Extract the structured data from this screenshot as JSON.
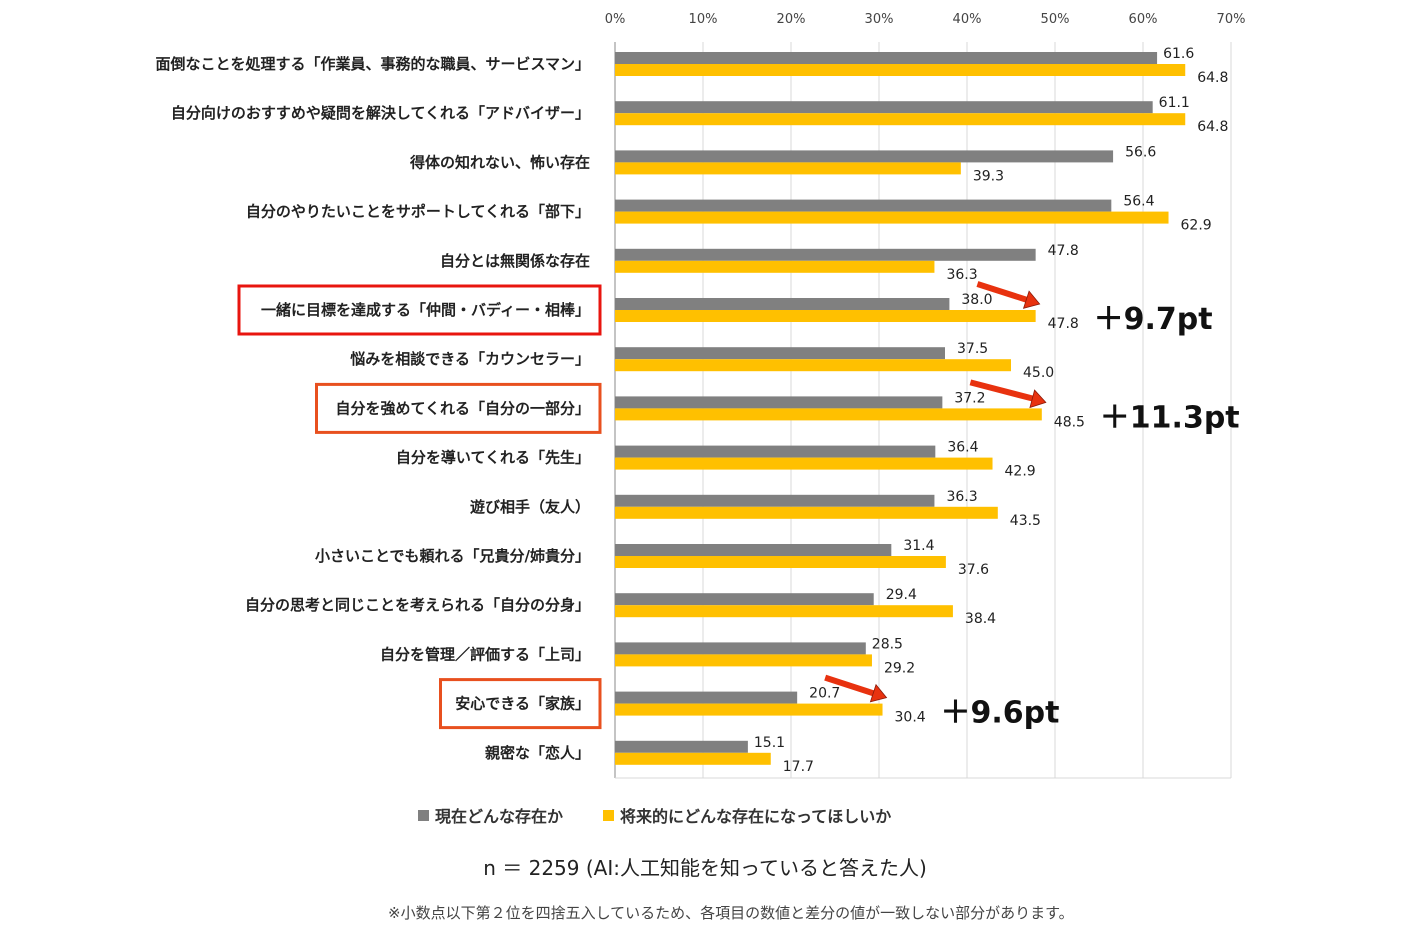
{
  "chart_data": {
    "type": "bar",
    "orientation": "horizontal",
    "xlim": [
      0,
      70
    ],
    "x_ticks": [
      "0%",
      "10%",
      "20%",
      "30%",
      "40%",
      "50%",
      "60%",
      "70%"
    ],
    "grid": true,
    "legend_position": "bottom",
    "categories": [
      "面倒なことを処理する「作業員、事務的な職員、サービスマン」",
      "自分向けのおすすめや疑問を解決してくれる「アドバイザー」",
      "得体の知れない、怖い存在",
      "自分のやりたいことをサポートしてくれる「部下」",
      "自分とは無関係な存在",
      "一緒に目標を達成する「仲間・バディー・相棒」",
      "悩みを相談できる「カウンセラー」",
      "自分を強めてくれる「自分の一部分」",
      "自分を導いてくれる「先生」",
      "遊び相手（友人）",
      "小さいことでも頼れる「兄貴分/姉貴分」",
      "自分の思考と同じことを考えられる「自分の分身」",
      "自分を管理／評価する「上司」",
      "安心できる「家族」",
      "親密な「恋人」"
    ],
    "series": [
      {
        "name": "現在どんな存在か",
        "color": "#808080",
        "values": [
          61.6,
          61.1,
          56.6,
          56.4,
          47.8,
          38.0,
          37.5,
          37.2,
          36.4,
          36.3,
          31.4,
          29.4,
          28.5,
          20.7,
          15.1
        ],
        "labels": [
          "61.6",
          "61.1",
          "56.6",
          "56.4",
          "47.8",
          "38.0",
          "37.5",
          "37.2",
          "36.4",
          "36.3",
          "31.4",
          "29.4",
          "28.5",
          "20.7",
          "15.1"
        ]
      },
      {
        "name": "将来的にどんな存在になってほしいか",
        "color": "#FFC000",
        "values": [
          64.8,
          64.8,
          39.3,
          62.9,
          36.3,
          47.8,
          45.0,
          48.5,
          42.9,
          43.5,
          37.6,
          38.4,
          29.2,
          30.4,
          17.7
        ],
        "labels": [
          "64.8",
          "64.8",
          "39.3",
          "62.9",
          "36.3",
          "47.8",
          "45.0",
          "48.5",
          "42.9",
          "43.5",
          "37.6",
          "38.4",
          "29.2",
          "30.4",
          "17.7"
        ]
      }
    ],
    "highlights": [
      {
        "index": 5,
        "box_color": "#E8150F",
        "diff": "＋9.7pt"
      },
      {
        "index": 7,
        "box_color": "#E8501F",
        "diff": "＋11.3pt"
      },
      {
        "index": 13,
        "box_color": "#E8501F",
        "diff": "＋9.6pt"
      }
    ],
    "arrow_color": "#E8320F"
  },
  "footer": {
    "sample": "n ＝ 2259 (AI:人工知能を知っていると答えた人)",
    "note": "※小数点以下第２位を四捨五入しているため、各項目の数値と差分の値が一致しない部分があります。"
  }
}
